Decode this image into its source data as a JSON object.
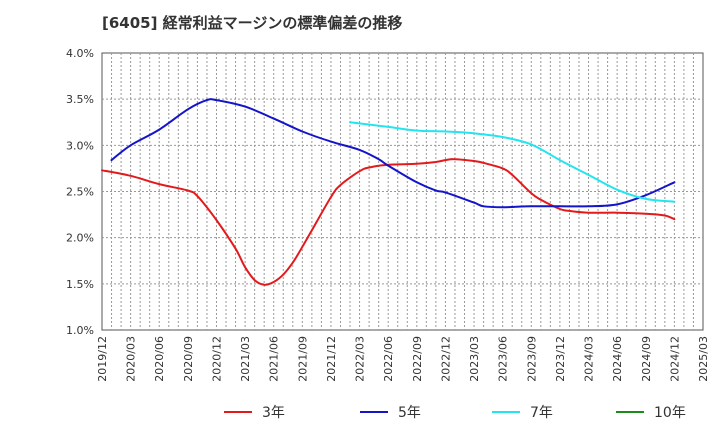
{
  "chart_data": {
    "type": "line",
    "title": "[6405]  経常利益マージンの標準偏差の推移",
    "xlabel": "",
    "ylabel": "",
    "ylim": [
      1.0,
      4.0
    ],
    "yticks": [
      "1.0%",
      "1.5%",
      "2.0%",
      "2.5%",
      "3.0%",
      "3.5%",
      "4.0%"
    ],
    "xticks": [
      "2019/12",
      "2020/03",
      "2020/06",
      "2020/09",
      "2020/12",
      "2021/03",
      "2021/06",
      "2021/09",
      "2021/12",
      "2022/03",
      "2022/06",
      "2022/09",
      "2022/12",
      "2023/03",
      "2023/06",
      "2023/09",
      "2023/12",
      "2024/03",
      "2024/06",
      "2024/09",
      "2024/12",
      "2025/03"
    ],
    "grid": true,
    "legend_position": "bottom",
    "series": [
      {
        "name": "3年",
        "color": "#e31a1c",
        "x": [
          "2019/12",
          "2020/03",
          "2020/06",
          "2020/09",
          "2020/10",
          "2020/12",
          "2021/02",
          "2021/03",
          "2021/04",
          "2021/05",
          "2021/06",
          "2021/07",
          "2021/08",
          "2021/09",
          "2021/10",
          "2021/12",
          "2022/01",
          "2022/03",
          "2022/04",
          "2022/06",
          "2022/09",
          "2022/11",
          "2022/12",
          "2023/01",
          "2023/03",
          "2023/04",
          "2023/06",
          "2023/07",
          "2023/09",
          "2023/10",
          "2023/12",
          "2024/01",
          "2024/03",
          "2024/06",
          "2024/09",
          "2024/11",
          "2024/12"
        ],
        "values": [
          2.73,
          2.67,
          2.58,
          2.51,
          2.45,
          2.19,
          1.88,
          1.68,
          1.54,
          1.49,
          1.52,
          1.6,
          1.73,
          1.9,
          2.08,
          2.44,
          2.57,
          2.72,
          2.76,
          2.79,
          2.8,
          2.82,
          2.84,
          2.85,
          2.83,
          2.81,
          2.75,
          2.68,
          2.48,
          2.41,
          2.31,
          2.29,
          2.27,
          2.27,
          2.26,
          2.24,
          2.2
        ]
      },
      {
        "name": "5年",
        "color": "#1414c8",
        "x": [
          "2020/01",
          "2020/03",
          "2020/06",
          "2020/09",
          "2020/11",
          "2020/12",
          "2021/03",
          "2021/06",
          "2021/09",
          "2021/12",
          "2022/03",
          "2022/05",
          "2022/06",
          "2022/09",
          "2022/11",
          "2022/12",
          "2023/03",
          "2023/04",
          "2023/06",
          "2023/09",
          "2023/12",
          "2024/03",
          "2024/06",
          "2024/09",
          "2024/12"
        ],
        "values": [
          2.84,
          3.0,
          3.17,
          3.39,
          3.49,
          3.49,
          3.42,
          3.29,
          3.15,
          3.04,
          2.95,
          2.85,
          2.78,
          2.6,
          2.51,
          2.49,
          2.38,
          2.34,
          2.33,
          2.34,
          2.34,
          2.34,
          2.36,
          2.46,
          2.6
        ]
      },
      {
        "name": "7年",
        "color": "#22e5f0",
        "x": [
          "2022/02",
          "2022/06",
          "2022/09",
          "2022/12",
          "2023/03",
          "2023/06",
          "2023/09",
          "2023/12",
          "2024/03",
          "2024/06",
          "2024/09",
          "2024/12"
        ],
        "values": [
          3.25,
          3.2,
          3.16,
          3.15,
          3.13,
          3.09,
          3.01,
          2.84,
          2.68,
          2.52,
          2.42,
          2.39
        ]
      },
      {
        "name": "10年",
        "color": "#1a8c1a",
        "x": [],
        "values": []
      }
    ]
  }
}
